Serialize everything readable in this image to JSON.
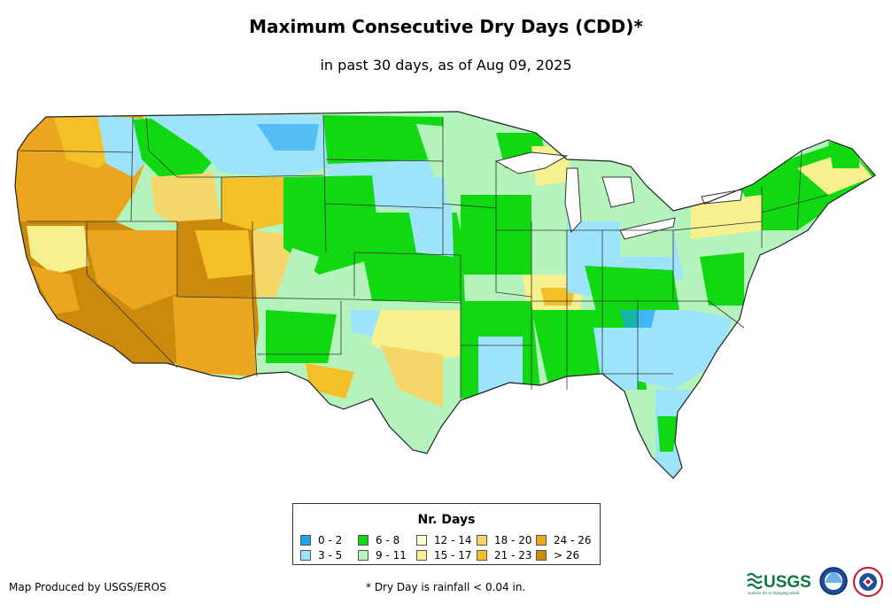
{
  "title": "Maximum Consecutive Dry Days (CDD)*",
  "subtitle": "in past 30 days, as of Aug 09, 2025",
  "legend": {
    "title": "Nr. Days",
    "items": [
      {
        "label": "0 - 2",
        "color": "#1aa3f0"
      },
      {
        "label": "3 - 5",
        "color": "#9de3fb"
      },
      {
        "label": "6 - 8",
        "color": "#11d911"
      },
      {
        "label": "9 - 11",
        "color": "#b4f4bc"
      },
      {
        "label": "12 - 14",
        "color": "#fbfbce"
      },
      {
        "label": "15 - 17",
        "color": "#f7f08f"
      },
      {
        "label": "18 - 20",
        "color": "#f5d769"
      },
      {
        "label": "21 - 23",
        "color": "#f3c028"
      },
      {
        "label": "24 - 26",
        "color": "#eba51e"
      },
      {
        "label": "> 26",
        "color": "#cc8a0c"
      }
    ]
  },
  "credit": "Map Produced by USGS/EROS",
  "footnote": "* Dry Day is rainfall < 0.04 in.",
  "logos": {
    "usgs_text": "USGS",
    "usgs_tagline": "science for a changing world"
  }
}
